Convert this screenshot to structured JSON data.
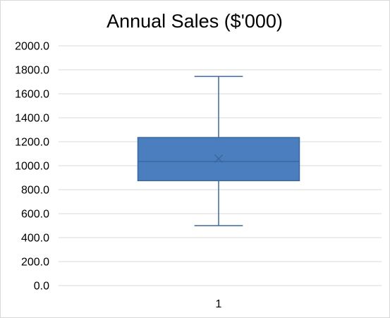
{
  "chart_data": {
    "type": "box",
    "title": "Annual Sales ($'000)",
    "xlabel": "",
    "ylabel": "",
    "categories": [
      "1"
    ],
    "ylim": [
      0,
      2000
    ],
    "y_ticks": [
      "0.0",
      "200.0",
      "400.0",
      "600.0",
      "800.0",
      "1000.0",
      "1200.0",
      "1400.0",
      "1600.0",
      "1800.0",
      "2000.0"
    ],
    "grid": true,
    "legend": "none",
    "series": [
      {
        "category": "1",
        "min": 500,
        "q1": 875,
        "median": 1035,
        "q3": 1235,
        "max": 1745,
        "mean": 1058
      }
    ],
    "colors": {
      "box_fill": "#4a7ebf",
      "box_stroke": "#3b689f",
      "whisker": "#3b689f",
      "grid": "#d9d9d9",
      "mean_marker": "#3b689f"
    }
  }
}
